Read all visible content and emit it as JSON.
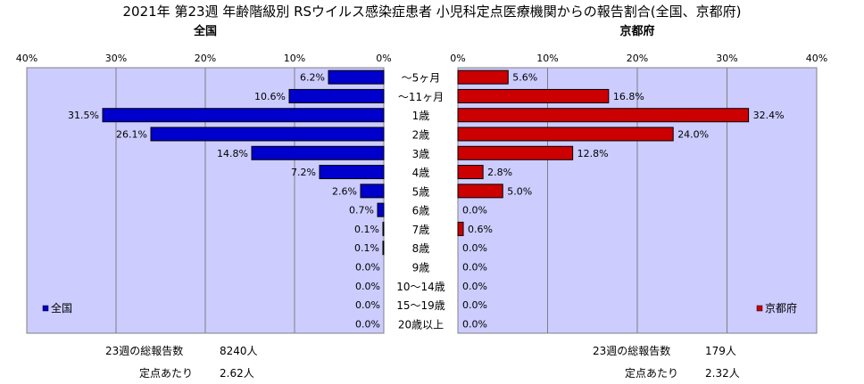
{
  "title": "2021年 第23週 年齢階級別 RSウイルス感染症患者 小児科定点医療機関からの報告割合(全国、京都府)",
  "chart_data": [
    {
      "type": "bar",
      "orientation": "horizontal",
      "direction": "right-to-left",
      "title": "全国",
      "categories": [
        "～5ヶ月",
        "～11ヶ月",
        "1歳",
        "2歳",
        "3歳",
        "4歳",
        "5歳",
        "6歳",
        "7歳",
        "8歳",
        "9歳",
        "10～14歳",
        "15～19歳",
        "20歳以上"
      ],
      "series": [
        {
          "name": "全国",
          "color": "#0000cc",
          "values": [
            6.2,
            10.6,
            31.5,
            26.1,
            14.8,
            7.2,
            2.6,
            0.7,
            0.1,
            0.1,
            0.0,
            0.0,
            0.0,
            0.0
          ],
          "labels": [
            "6.2%",
            "10.6%",
            "31.5%",
            "26.1%",
            "14.8%",
            "7.2%",
            "2.6%",
            "0.7%",
            "0.1%",
            "0.1%",
            "0.0%",
            "0.0%",
            "0.0%",
            "0.0%"
          ]
        }
      ],
      "xlim": [
        0,
        40
      ],
      "xticks": [
        40,
        30,
        20,
        10,
        0
      ],
      "xtick_labels": [
        "40%",
        "30%",
        "20%",
        "10%",
        "0%"
      ],
      "grid": true,
      "legend": "bottom-left",
      "legend_label": "全国"
    },
    {
      "type": "bar",
      "orientation": "horizontal",
      "direction": "left-to-right",
      "title": "京都府",
      "categories": [
        "～5ヶ月",
        "～11ヶ月",
        "1歳",
        "2歳",
        "3歳",
        "4歳",
        "5歳",
        "6歳",
        "7歳",
        "8歳",
        "9歳",
        "10～14歳",
        "15～19歳",
        "20歳以上"
      ],
      "series": [
        {
          "name": "京都府",
          "color": "#cc0000",
          "values": [
            5.6,
            16.8,
            32.4,
            24.0,
            12.8,
            2.8,
            5.0,
            0.0,
            0.6,
            0.0,
            0.0,
            0.0,
            0.0,
            0.0
          ],
          "labels": [
            "5.6%",
            "16.8%",
            "32.4%",
            "24.0%",
            "12.8%",
            "2.8%",
            "5.0%",
            "0.0%",
            "0.6%",
            "0.0%",
            "0.0%",
            "0.0%",
            "0.0%",
            "0.0%"
          ]
        }
      ],
      "xlim": [
        0,
        40
      ],
      "xticks": [
        0,
        10,
        20,
        30,
        40
      ],
      "xtick_labels": [
        "0%",
        "10%",
        "20%",
        "30%",
        "40%"
      ],
      "grid": true,
      "legend": "bottom-right",
      "legend_label": "京都府"
    }
  ],
  "stats": {
    "national_total_label": "23週の総報告数",
    "national_total_value": "8240人",
    "national_per_label": "定点あたり",
    "national_per_value": "2.62人",
    "kyoto_total_label": "23週の総報告数",
    "kyoto_total_value": "179人",
    "kyoto_per_label": "定点あたり",
    "kyoto_per_value": "2.32人"
  }
}
